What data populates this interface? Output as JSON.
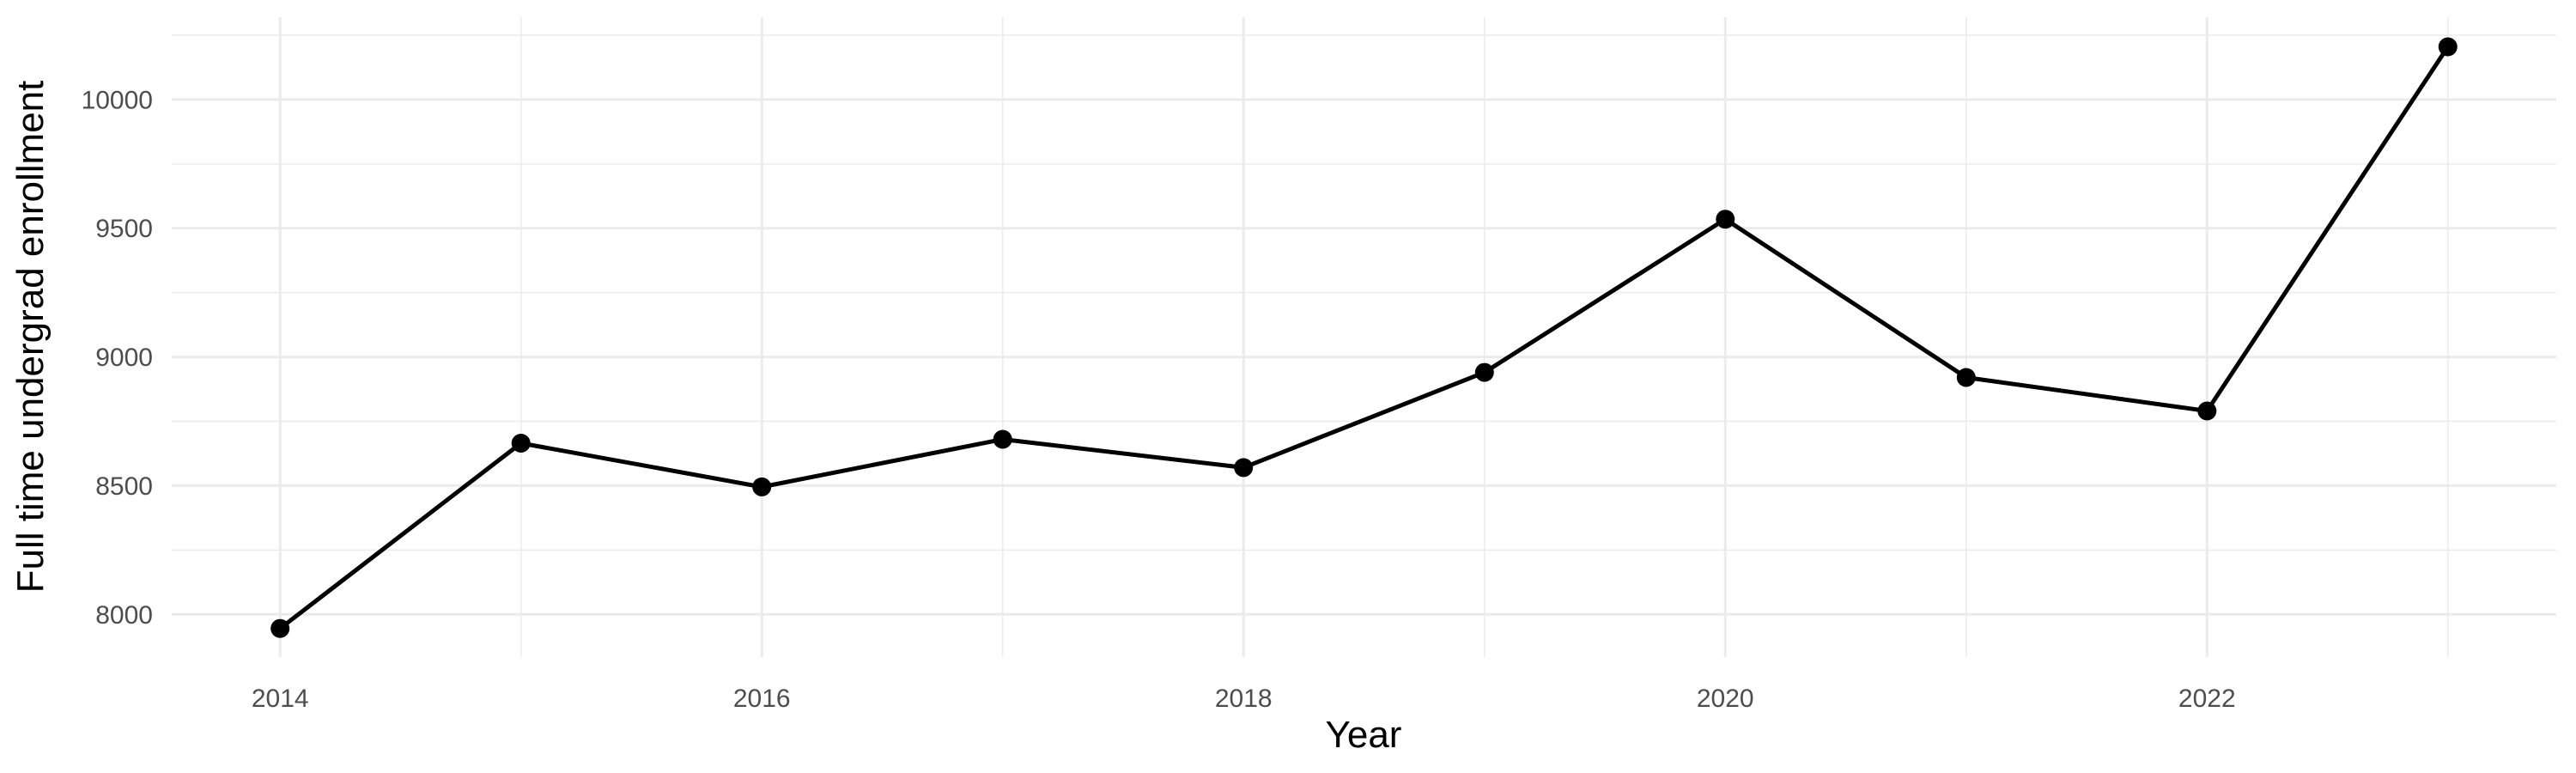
{
  "chart_data": {
    "type": "line",
    "title": "",
    "xlabel": "Year",
    "ylabel": "Full time undergrad enrollment",
    "x": [
      2014,
      2015,
      2016,
      2017,
      2018,
      2019,
      2020,
      2021,
      2022,
      2023
    ],
    "series": [
      {
        "name": "Full time undergrad enrollment",
        "values": [
          7945,
          8665,
          8495,
          8680,
          8570,
          8940,
          9535,
          8920,
          8790,
          10205
        ]
      }
    ],
    "x_major_ticks": [
      2014,
      2016,
      2018,
      2020,
      2022
    ],
    "x_major_tick_labels": [
      "2014",
      "2016",
      "2018",
      "2020",
      "2022"
    ],
    "x_minor_ticks": [
      2015,
      2017,
      2019,
      2021,
      2023
    ],
    "y_major_ticks": [
      8000,
      8500,
      9000,
      9500,
      10000
    ],
    "y_major_tick_labels": [
      "8000",
      "8500",
      "9000",
      "9500",
      "10000"
    ],
    "y_minor_ticks": [
      8250,
      8750,
      9250,
      9750,
      10250
    ],
    "xlim": [
      2013.55,
      2023.45
    ],
    "ylim": [
      7834,
      10320
    ],
    "grid": true,
    "legend": "none",
    "colors": {
      "line": "#000000",
      "point": "#000000",
      "grid": "#ebebeb",
      "tick_label": "#4d4d4d",
      "axis_title": "#000000",
      "background": "#ffffff"
    }
  }
}
